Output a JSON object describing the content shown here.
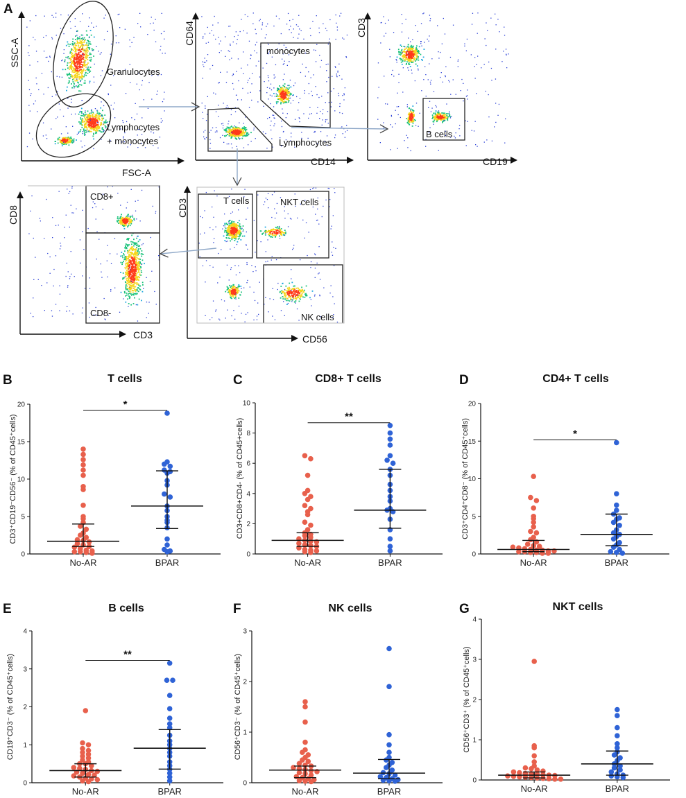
{
  "colors": {
    "no_ar": "#e8604c",
    "bpar": "#2f63d6",
    "axis": "#111111",
    "density_low": "#2a3fd6",
    "density_mid": "#19c27a",
    "density_high": "#ff3a1a"
  },
  "flow": {
    "panel_label": "A",
    "plots": [
      {
        "id": "p1",
        "xlabel": "FSC-A",
        "ylabel": "SSC-A",
        "gates": [
          "Granulocytes",
          "Lymphocytes",
          "+ monocytes"
        ]
      },
      {
        "id": "p2",
        "xlabel": "CD14",
        "ylabel": "CD64",
        "gates": [
          "monocytes",
          "Lymphocytes"
        ]
      },
      {
        "id": "p3",
        "xlabel": "CD19",
        "ylabel": "CD3",
        "gates": [
          "B cells"
        ]
      },
      {
        "id": "p4",
        "xlabel": "CD3",
        "ylabel": "CD8",
        "gates": [
          "CD8+",
          "CD8-"
        ]
      },
      {
        "id": "p5",
        "xlabel": "CD56",
        "ylabel": "CD3",
        "gates": [
          "T cells",
          "NKT cells",
          "NK cells"
        ]
      }
    ]
  },
  "chart_data": [
    {
      "panel": "B",
      "type": "scatter",
      "title": "T cells",
      "ylabel": "CD3⁺CD19⁻CD56⁻ (% of CD45⁺cells)",
      "categories": [
        "No-AR",
        "BPAR"
      ],
      "ylim": [
        0,
        20
      ],
      "yticks": [
        0,
        5,
        10,
        15,
        20
      ],
      "significance": "*",
      "series": [
        {
          "name": "No-AR",
          "median": 1.7,
          "q1": 1.0,
          "q3": 4.0,
          "values": [
            14.0,
            13.3,
            12.6,
            11.9,
            11.2,
            10.5,
            9.0,
            8.6,
            6.5,
            5.0,
            4.7,
            4.2,
            3.7,
            3.3,
            2.8,
            2.5,
            2.2,
            1.9,
            1.8,
            1.6,
            1.4,
            1.2,
            1.0,
            0.9,
            0.7,
            0.5,
            0.4,
            0.3,
            0.3,
            0.2,
            0.1
          ]
        },
        {
          "name": "BPAR",
          "median": 6.4,
          "q1": 3.4,
          "q3": 11.1,
          "values": [
            18.8,
            12.3,
            12.0,
            11.7,
            11.2,
            11.0,
            10.8,
            9.8,
            9.2,
            8.0,
            7.6,
            6.4,
            5.8,
            5.0,
            4.5,
            4.2,
            3.5,
            2.0,
            1.2,
            0.6,
            0.4,
            0.3
          ]
        }
      ]
    },
    {
      "panel": "C",
      "type": "scatter",
      "title": "CD8+ T cells",
      "ylabel": "CD3+CD8+CD4- (% of CD45+cells)",
      "categories": [
        "No-AR",
        "BPAR"
      ],
      "ylim": [
        0,
        10
      ],
      "yticks": [
        0,
        2,
        4,
        6,
        8,
        10
      ],
      "significance": "**",
      "series": [
        {
          "name": "No-AR",
          "median": 0.9,
          "q1": 0.5,
          "q3": 1.4,
          "values": [
            6.5,
            6.3,
            5.2,
            4.2,
            4.0,
            3.8,
            3.6,
            3.2,
            3.0,
            2.8,
            2.6,
            2.1,
            1.9,
            1.6,
            1.4,
            1.3,
            1.2,
            1.1,
            1.0,
            0.9,
            0.85,
            0.8,
            0.7,
            0.6,
            0.55,
            0.5,
            0.4,
            0.3,
            0.25,
            0.2,
            0.15,
            0.1
          ]
        },
        {
          "name": "BPAR",
          "median": 2.9,
          "q1": 1.7,
          "q3": 5.6,
          "values": [
            8.5,
            8.0,
            7.6,
            7.2,
            6.5,
            6.2,
            6.0,
            5.6,
            5.2,
            4.6,
            4.2,
            3.8,
            3.5,
            3.0,
            2.9,
            2.8,
            2.3,
            1.6,
            1.0,
            0.5,
            0.2
          ]
        }
      ]
    },
    {
      "panel": "D",
      "type": "scatter",
      "title": "CD4+ T cells",
      "ylabel": "CD3⁺CD4⁺CD8⁻ (% of CD45⁺cells)",
      "categories": [
        "No-AR",
        "BPAR"
      ],
      "ylim": [
        0,
        20
      ],
      "yticks": [
        0,
        5,
        10,
        15,
        20
      ],
      "significance": "*",
      "series": [
        {
          "name": "No-AR",
          "median": 0.6,
          "q1": 0.3,
          "q3": 1.8,
          "values": [
            10.3,
            7.5,
            7.1,
            6.1,
            5.0,
            4.7,
            4.2,
            3.6,
            3.0,
            2.8,
            2.2,
            1.9,
            1.6,
            1.3,
            1.1,
            1.0,
            0.9,
            0.8,
            0.7,
            0.6,
            0.5,
            0.5,
            0.4,
            0.4,
            0.3,
            0.3,
            0.2,
            0.2,
            0.1,
            0.1
          ]
        },
        {
          "name": "BPAR",
          "median": 2.6,
          "q1": 1.1,
          "q3": 5.3,
          "values": [
            14.8,
            8.0,
            6.5,
            5.8,
            5.3,
            4.8,
            4.6,
            4.2,
            3.8,
            3.2,
            2.8,
            2.6,
            2.3,
            2.0,
            1.5,
            1.2,
            0.9,
            0.6,
            0.3,
            0.2,
            0.1
          ]
        }
      ]
    },
    {
      "panel": "E",
      "type": "scatter",
      "title": "B cells",
      "ylabel": "CD19⁺CD3⁻ (% of CD45⁺cells)",
      "categories": [
        "No-AR",
        "BPAR"
      ],
      "ylim": [
        0,
        4
      ],
      "yticks": [
        0,
        1,
        2,
        3,
        4
      ],
      "significance": "**",
      "series": [
        {
          "name": "No-AR",
          "median": 0.32,
          "q1": 0.15,
          "q3": 0.5,
          "values": [
            1.9,
            1.05,
            1.0,
            0.9,
            0.85,
            0.8,
            0.75,
            0.7,
            0.65,
            0.6,
            0.55,
            0.5,
            0.5,
            0.45,
            0.4,
            0.38,
            0.35,
            0.32,
            0.3,
            0.28,
            0.25,
            0.22,
            0.2,
            0.18,
            0.15,
            0.12,
            0.1,
            0.08,
            0.05,
            0.03
          ]
        },
        {
          "name": "BPAR",
          "median": 0.91,
          "q1": 0.36,
          "q3": 1.4,
          "values": [
            3.15,
            2.7,
            2.7,
            2.3,
            1.95,
            1.7,
            1.55,
            1.45,
            1.25,
            1.1,
            1.0,
            0.9,
            0.8,
            0.7,
            0.55,
            0.45,
            0.35,
            0.25,
            0.15,
            0.05
          ]
        }
      ]
    },
    {
      "panel": "F",
      "type": "scatter",
      "title": "NK cells",
      "ylabel": "CD56⁺CD3⁻ (% of CD45⁺cells)",
      "categories": [
        "No-AR",
        "BPAR"
      ],
      "ylim": [
        0,
        3
      ],
      "yticks": [
        0,
        1,
        2,
        3
      ],
      "significance": "",
      "series": [
        {
          "name": "No-AR",
          "median": 0.25,
          "q1": 0.1,
          "q3": 0.33,
          "values": [
            1.6,
            1.5,
            1.2,
            0.8,
            0.65,
            0.6,
            0.55,
            0.5,
            0.45,
            0.42,
            0.38,
            0.35,
            0.33,
            0.3,
            0.28,
            0.26,
            0.24,
            0.22,
            0.2,
            0.18,
            0.15,
            0.12,
            0.1,
            0.08,
            0.06,
            0.04,
            0.03,
            0.02
          ]
        },
        {
          "name": "BPAR",
          "median": 0.19,
          "q1": 0.08,
          "q3": 0.46,
          "values": [
            2.65,
            1.9,
            0.95,
            0.75,
            0.6,
            0.5,
            0.45,
            0.4,
            0.35,
            0.3,
            0.25,
            0.2,
            0.18,
            0.15,
            0.12,
            0.1,
            0.08,
            0.06,
            0.05,
            0.04,
            0.03
          ]
        }
      ]
    },
    {
      "panel": "G",
      "type": "scatter",
      "title": "NKT cells",
      "ylabel": "CD56⁺CD3⁺ (% of CD45⁺cells)",
      "categories": [
        "No-AR",
        "BPAR"
      ],
      "ylim": [
        0,
        4
      ],
      "yticks": [
        0,
        1,
        2,
        3,
        4
      ],
      "significance": "",
      "series": [
        {
          "name": "No-AR",
          "median": 0.12,
          "q1": 0.05,
          "q3": 0.2,
          "values": [
            2.95,
            0.85,
            0.8,
            0.6,
            0.45,
            0.35,
            0.3,
            0.28,
            0.25,
            0.22,
            0.2,
            0.18,
            0.16,
            0.15,
            0.14,
            0.13,
            0.12,
            0.11,
            0.1,
            0.09,
            0.08,
            0.07,
            0.06,
            0.05,
            0.04,
            0.03,
            0.02,
            0.02
          ]
        },
        {
          "name": "BPAR",
          "median": 0.4,
          "q1": 0.12,
          "q3": 0.72,
          "values": [
            1.75,
            1.6,
            1.3,
            1.1,
            0.9,
            0.8,
            0.7,
            0.62,
            0.55,
            0.48,
            0.4,
            0.35,
            0.3,
            0.25,
            0.2,
            0.15,
            0.12,
            0.1,
            0.08,
            0.06
          ]
        }
      ]
    }
  ]
}
